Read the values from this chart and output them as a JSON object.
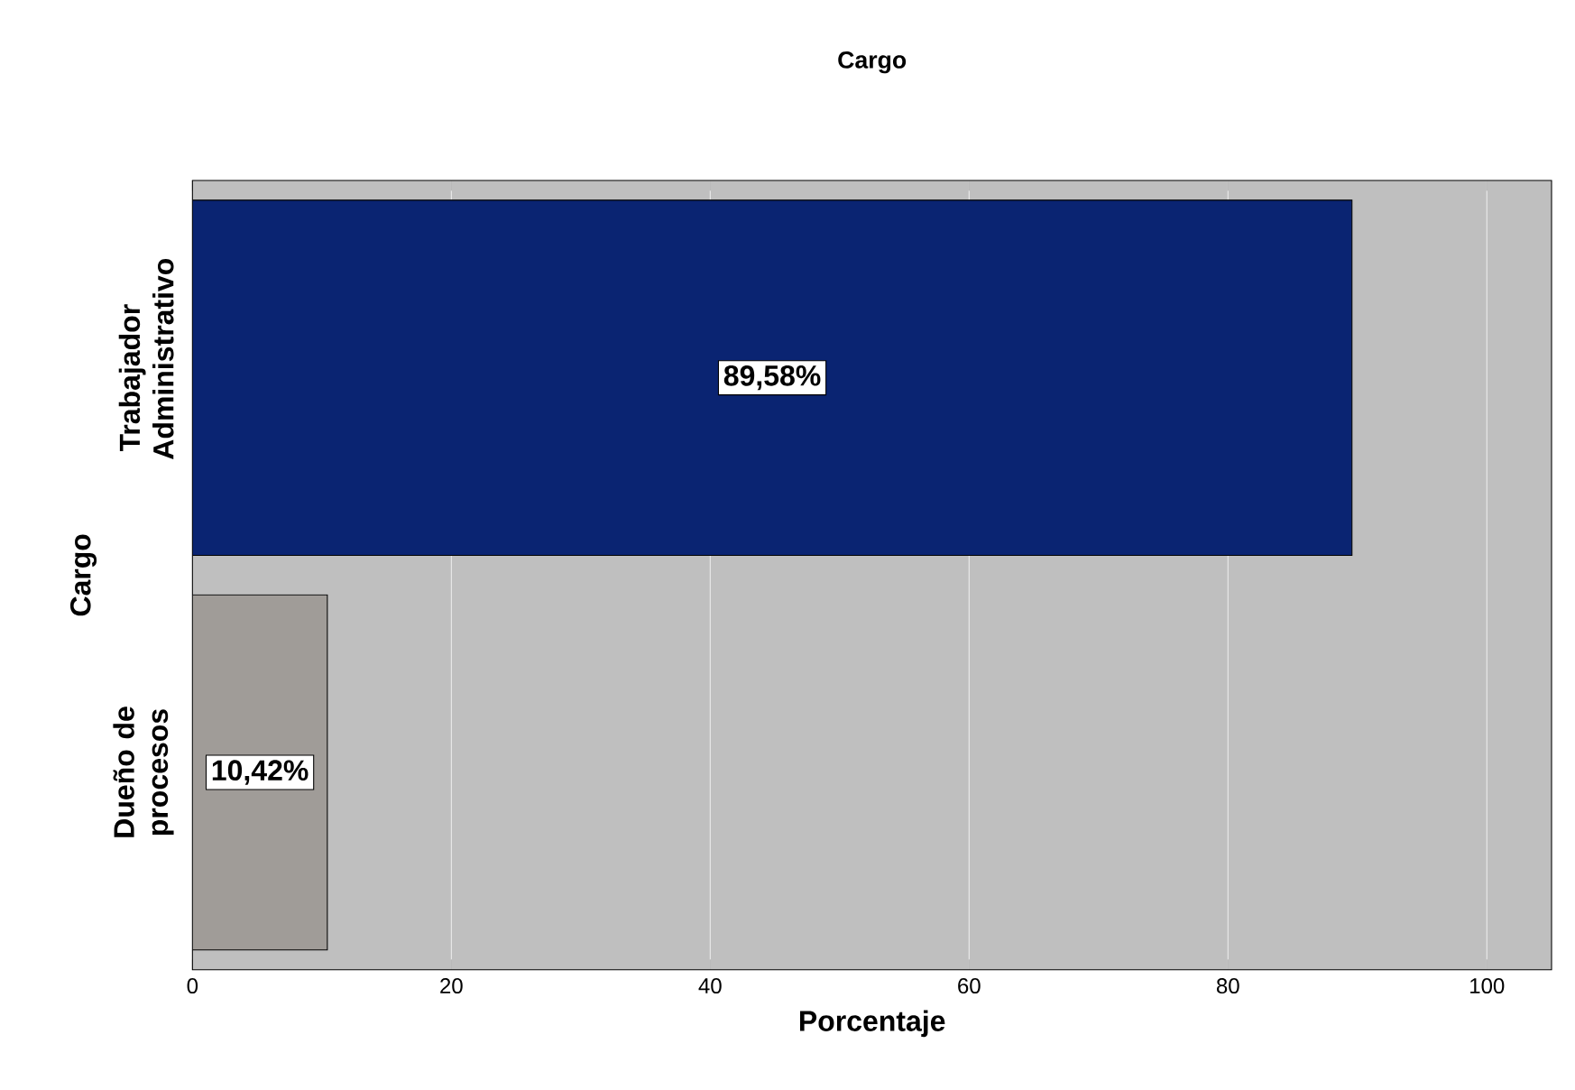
{
  "chart_data": {
    "type": "bar",
    "orientation": "horizontal",
    "title": "Cargo",
    "xlabel": "Porcentaje",
    "ylabel": "Cargo",
    "categories": [
      "Trabajador Administrativo",
      "Dueño de procesos"
    ],
    "values": [
      89.58,
      10.42
    ],
    "colors": [
      "#0a2472",
      "#a09c98"
    ],
    "value_labels": [
      "89,58%",
      "10,42%"
    ],
    "xlim": [
      0,
      105
    ],
    "xticks": [
      0,
      20,
      40,
      60,
      80,
      100
    ],
    "grid": "x"
  }
}
